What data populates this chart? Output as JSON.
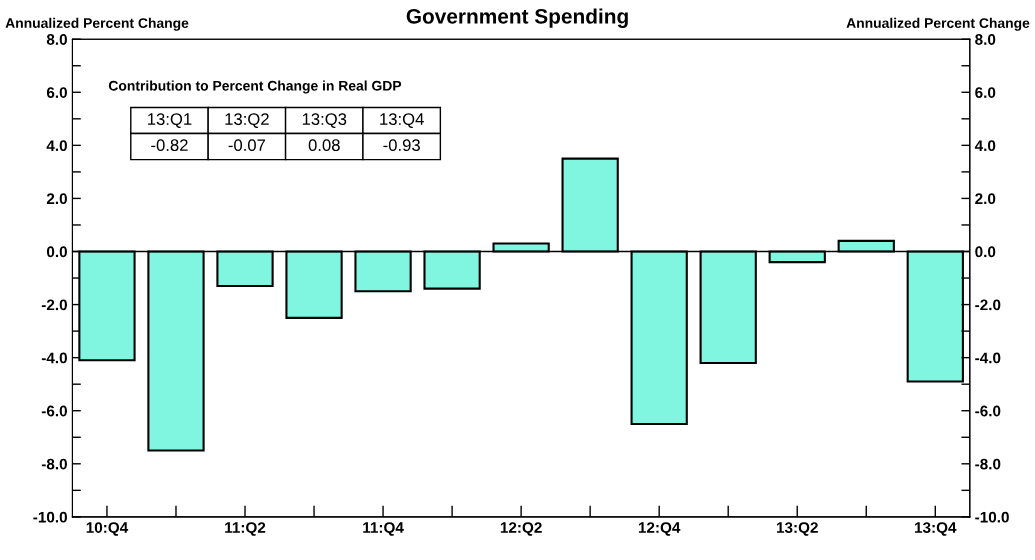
{
  "chart_data": {
    "type": "bar",
    "title": "Government Spending",
    "ylabel": "Annualized Percent Change",
    "y2label": "Annualized Percent Change",
    "categories": [
      "10:Q4",
      null,
      "11:Q2",
      null,
      "11:Q4",
      null,
      "12:Q2",
      null,
      "12:Q4",
      null,
      "13:Q2",
      null,
      "13:Q4"
    ],
    "values": [
      -4.1,
      -7.5,
      -1.3,
      -2.5,
      -1.5,
      -1.4,
      0.3,
      3.5,
      -6.5,
      -4.2,
      -0.4,
      0.4,
      -4.9
    ],
    "color": "#80f5e0",
    "ylim": [
      -10,
      8
    ],
    "yticks": [
      {
        "value": -10,
        "label": "-10.0"
      },
      {
        "value": -9,
        "label": null
      },
      {
        "value": -8,
        "label": "-8.0"
      },
      {
        "value": -7,
        "label": null
      },
      {
        "value": -6,
        "label": "-6.0"
      },
      {
        "value": -5,
        "label": null
      },
      {
        "value": -4,
        "label": "-4.0"
      },
      {
        "value": -3,
        "label": null
      },
      {
        "value": -2,
        "label": "-2.0"
      },
      {
        "value": -1,
        "label": null
      },
      {
        "value": 0,
        "label": "0.0"
      },
      {
        "value": 1,
        "label": null
      },
      {
        "value": 2,
        "label": "2.0"
      },
      {
        "value": 3,
        "label": null
      },
      {
        "value": 4,
        "label": "4.0"
      },
      {
        "value": 5,
        "label": null
      },
      {
        "value": 6,
        "label": "6.0"
      },
      {
        "value": 7,
        "label": null
      },
      {
        "value": 8,
        "label": "8.0"
      }
    ],
    "y2lim": [
      -10,
      8
    ],
    "y2ticks": [
      {
        "value": -10,
        "label": "-10.0"
      },
      {
        "value": -9,
        "label": null
      },
      {
        "value": -8,
        "label": "-8.0"
      },
      {
        "value": -7,
        "label": null
      },
      {
        "value": -6,
        "label": "-6.0"
      },
      {
        "value": -5,
        "label": null
      },
      {
        "value": -4,
        "label": "-4.0"
      },
      {
        "value": -3,
        "label": null
      },
      {
        "value": -2,
        "label": "-2.0"
      },
      {
        "value": -1,
        "label": null
      },
      {
        "value": 0,
        "label": "0.0"
      },
      {
        "value": 1,
        "label": null
      },
      {
        "value": 2,
        "label": "2.0"
      },
      {
        "value": 3,
        "label": null
      },
      {
        "value": 4,
        "label": "4.0"
      },
      {
        "value": 5,
        "label": null
      },
      {
        "value": 6,
        "label": "6.0"
      },
      {
        "value": 7,
        "label": null
      },
      {
        "value": 8,
        "label": "8.0"
      }
    ],
    "annotations": [
      "Contribution to Percent Change in Real GDP",
      "13:Q1",
      "13:Q2",
      "13:Q3",
      "13:Q4",
      "-0.82",
      "-0.07",
      "0.08",
      "-0.93"
    ],
    "legend": false
  }
}
